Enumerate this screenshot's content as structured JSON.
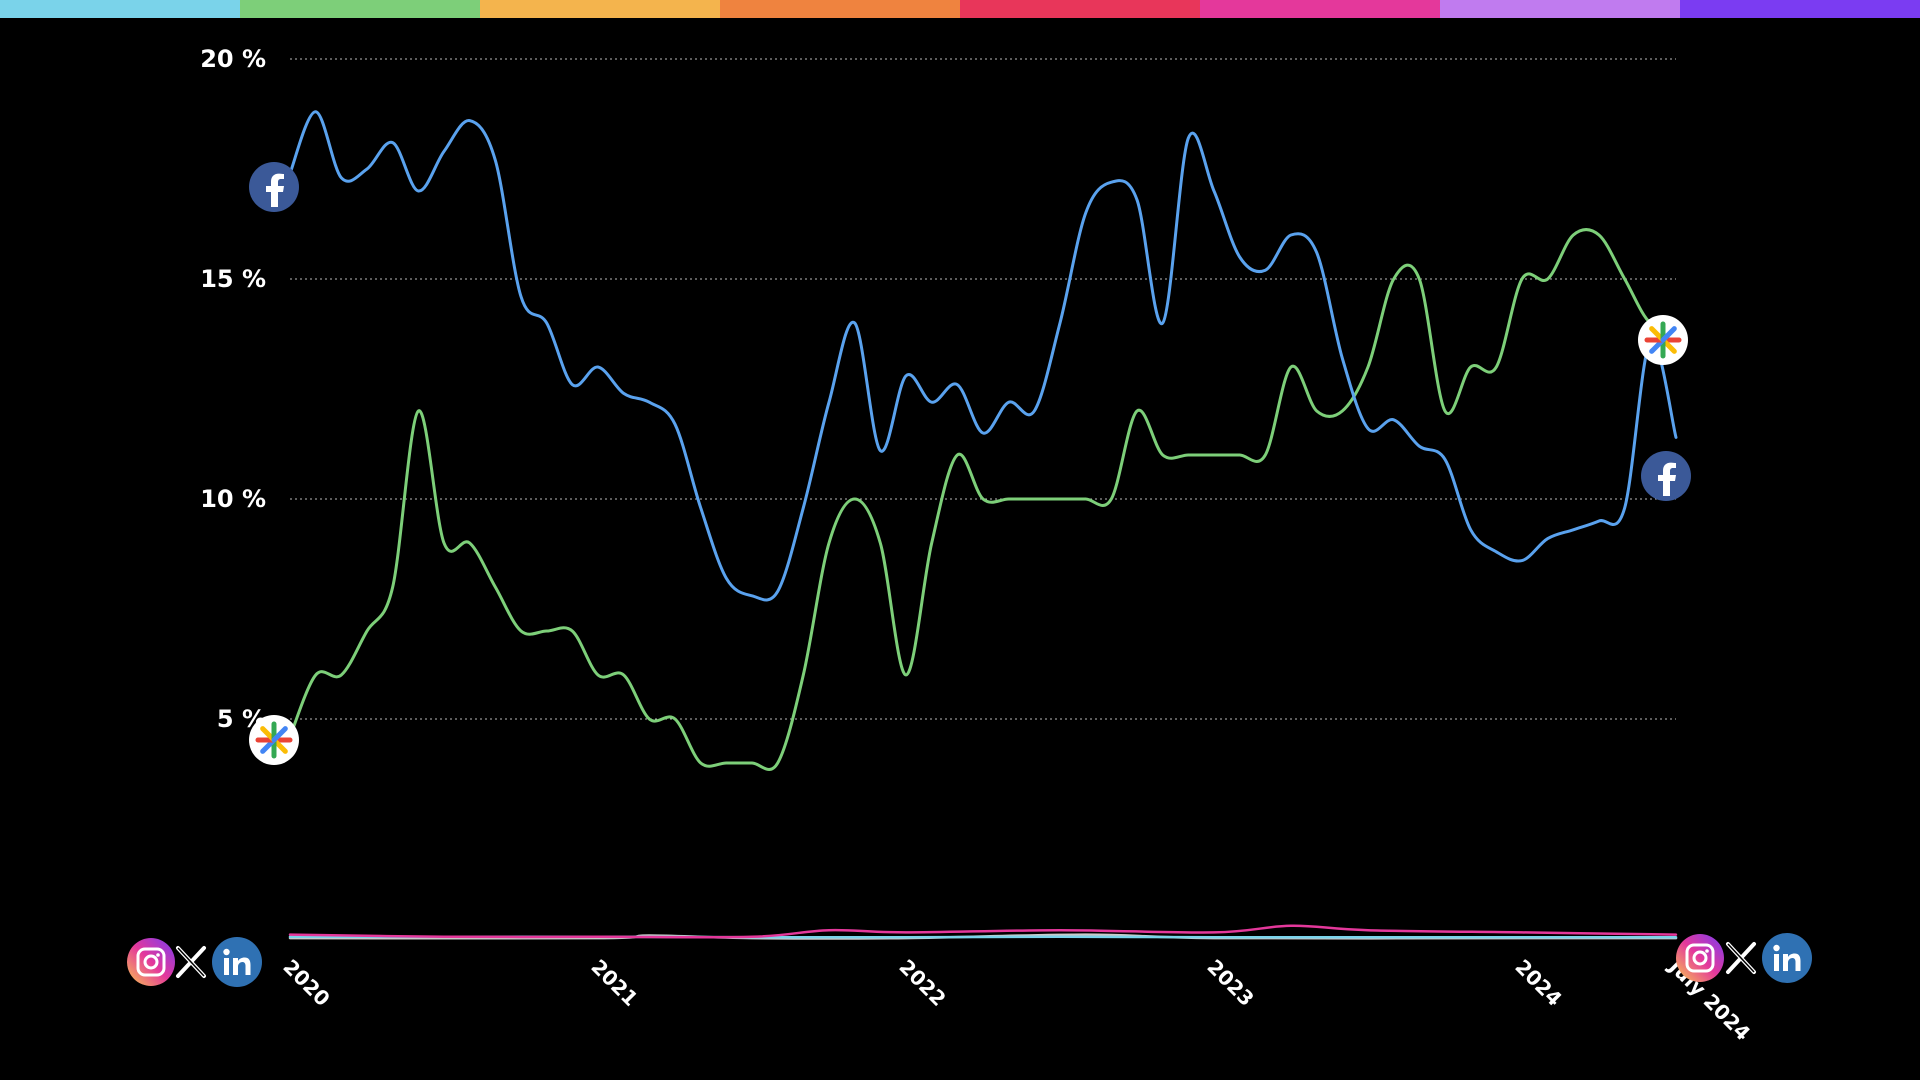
{
  "top_bar_colors": [
    "#7ad3ea",
    "#7dcf79",
    "#f4b44d",
    "#ef833f",
    "#e8365a",
    "#e4389b",
    "#c07bef",
    "#7b3cf2"
  ],
  "chart_data": {
    "type": "line",
    "ylim": [
      0,
      20
    ],
    "y_ticks": [
      {
        "value": 20,
        "label": "20 %"
      },
      {
        "value": 15,
        "label": "15 %"
      },
      {
        "value": 10,
        "label": "10 %"
      },
      {
        "value": 5,
        "label": "5 %"
      }
    ],
    "x_ticks": [
      {
        "date": "2020-01",
        "label": "2020"
      },
      {
        "date": "2021-01",
        "label": "2021"
      },
      {
        "date": "2022-01",
        "label": "2022"
      },
      {
        "date": "2023-01",
        "label": "2023"
      },
      {
        "date": "2024-01",
        "label": "2024"
      },
      {
        "date": "2024-07",
        "label": "July 2024"
      }
    ],
    "grid": "horizontal dotted",
    "series": [
      {
        "icon": "facebook-icon",
        "color": "#5aa2ee",
        "x": [
          "2020-01",
          "2020-02",
          "2020-03",
          "2020-04",
          "2020-05",
          "2020-06",
          "2020-07",
          "2020-08",
          "2020-09",
          "2020-10",
          "2020-11",
          "2020-12",
          "2021-01",
          "2021-02",
          "2021-03",
          "2021-04",
          "2021-05",
          "2021-06",
          "2021-07",
          "2021-08",
          "2021-09",
          "2021-10",
          "2021-11",
          "2021-12",
          "2022-01",
          "2022-02",
          "2022-03",
          "2022-04",
          "2022-05",
          "2022-06",
          "2022-07",
          "2022-08",
          "2022-09",
          "2022-10",
          "2022-11",
          "2022-12",
          "2023-01",
          "2023-02",
          "2023-03",
          "2023-04",
          "2023-05",
          "2023-06",
          "2023-07",
          "2023-08",
          "2023-09",
          "2023-10",
          "2023-11",
          "2023-12",
          "2024-01",
          "2024-02",
          "2024-03",
          "2024-04",
          "2024-05",
          "2024-06",
          "2024-07"
        ],
        "values": [
          17.4,
          18.8,
          17.3,
          17.5,
          18.1,
          17.0,
          17.9,
          18.6,
          17.7,
          14.6,
          14.0,
          12.6,
          13.0,
          12.4,
          12.2,
          11.7,
          9.8,
          8.2,
          7.8,
          7.9,
          9.8,
          12.2,
          14.0,
          11.1,
          12.8,
          12.2,
          12.6,
          11.5,
          12.2,
          12.0,
          14.0,
          16.5,
          17.2,
          16.8,
          14.0,
          18.2,
          17.0,
          15.5,
          15.2,
          16.0,
          15.6,
          13.2,
          11.6,
          11.8,
          11.2,
          10.9,
          9.3,
          8.8,
          8.6,
          9.1,
          9.3,
          9.5,
          9.8,
          13.6,
          11.4
        ]
      },
      {
        "icon": "google-photos-icon",
        "color": "#7dcf79",
        "x": [
          "2020-01",
          "2020-02",
          "2020-03",
          "2020-04",
          "2020-05",
          "2020-06",
          "2020-07",
          "2020-08",
          "2020-09",
          "2020-10",
          "2020-11",
          "2020-12",
          "2021-01",
          "2021-02",
          "2021-03",
          "2021-04",
          "2021-05",
          "2021-06",
          "2021-07",
          "2021-08",
          "2021-09",
          "2021-10",
          "2021-11",
          "2021-12",
          "2022-01",
          "2022-02",
          "2022-03",
          "2022-04",
          "2022-05",
          "2022-06",
          "2022-07",
          "2022-08",
          "2022-09",
          "2022-10",
          "2022-11",
          "2022-12",
          "2023-01",
          "2023-02",
          "2023-03",
          "2023-04",
          "2023-05",
          "2023-06",
          "2023-07",
          "2023-08",
          "2023-09",
          "2023-10",
          "2023-11",
          "2023-12",
          "2024-01",
          "2024-02",
          "2024-03",
          "2024-04",
          "2024-05",
          "2024-06",
          "2024-07"
        ],
        "values": [
          4.6,
          6.0,
          6.0,
          7.0,
          8.0,
          12.0,
          9.0,
          9.0,
          8.0,
          7.0,
          7.0,
          7.0,
          6.0,
          6.0,
          5.0,
          5.0,
          4.0,
          4.0,
          4.0,
          4.0,
          6.0,
          9.0,
          10.0,
          9.0,
          6.0,
          9.0,
          11.0,
          10.0,
          10.0,
          10.0,
          10.0,
          10.0,
          10.0,
          12.0,
          11.0,
          11.0,
          11.0,
          11.0,
          11.0,
          13.0,
          12.0,
          12.0,
          13.0,
          15.0,
          15.0,
          12.0,
          13.0,
          13.0,
          15.0,
          15.0,
          16.0,
          16.0,
          15.0,
          14.0,
          14.0
        ]
      },
      {
        "icon": "instagram-icon",
        "color": "#e4389b",
        "x": [
          "2020-01",
          "2020-07",
          "2021-01",
          "2021-07",
          "2021-10",
          "2022-01",
          "2022-07",
          "2023-01",
          "2023-04",
          "2023-07",
          "2024-01",
          "2024-07"
        ],
        "values": [
          0.1,
          0.05,
          0.05,
          0.05,
          0.2,
          0.15,
          0.2,
          0.15,
          0.3,
          0.2,
          0.15,
          0.1
        ]
      },
      {
        "icon": "x-icon",
        "color": "#7ad3ea",
        "x": [
          "2020-01",
          "2020-07",
          "2021-01",
          "2021-07",
          "2022-01",
          "2022-07",
          "2023-01",
          "2023-07",
          "2024-01",
          "2024-07"
        ],
        "values": [
          0.05,
          0.05,
          0.05,
          0.04,
          0.04,
          0.05,
          0.04,
          0.04,
          0.04,
          0.04
        ]
      },
      {
        "icon": "linkedin-icon",
        "color": "#c9c9c9",
        "x": [
          "2020-01",
          "2021-01",
          "2021-03",
          "2021-07",
          "2022-01",
          "2022-08",
          "2023-01",
          "2024-01",
          "2024-07"
        ],
        "values": [
          0.02,
          0.02,
          0.08,
          0.02,
          0.02,
          0.1,
          0.02,
          0.02,
          0.02
        ]
      }
    ]
  }
}
